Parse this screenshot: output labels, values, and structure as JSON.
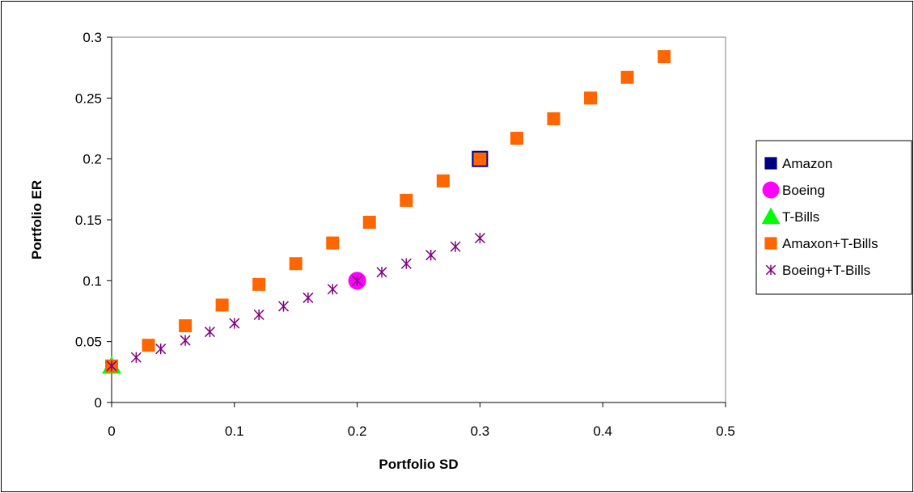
{
  "chart_data": {
    "type": "scatter",
    "xlabel": "Portfolio SD",
    "ylabel": "Portfolio ER",
    "xlim": [
      0,
      0.5
    ],
    "ylim": [
      0,
      0.3
    ],
    "xticks": [
      "0",
      "0.1",
      "0.2",
      "0.3",
      "0.4",
      "0.5"
    ],
    "yticks": [
      "0",
      "0.05",
      "0.1",
      "0.15",
      "0.2",
      "0.25",
      "0.3"
    ],
    "grid": false,
    "legend_position": "right",
    "series": [
      {
        "name": "Amazon",
        "marker": "square-large",
        "color": "#000080",
        "points": [
          [
            0.3,
            0.2
          ]
        ]
      },
      {
        "name": "Boeing",
        "marker": "circle",
        "color": "#FF00FF",
        "points": [
          [
            0.2,
            0.1
          ]
        ]
      },
      {
        "name": "T-Bills",
        "marker": "triangle",
        "color": "#00FF00",
        "points": [
          [
            0,
            0.03
          ]
        ]
      },
      {
        "name": "Amaxon+T-Bills",
        "marker": "square",
        "color": "#FF6600",
        "points": [
          [
            0,
            0.03
          ],
          [
            0.03,
            0.047
          ],
          [
            0.06,
            0.063
          ],
          [
            0.09,
            0.08
          ],
          [
            0.12,
            0.097
          ],
          [
            0.15,
            0.114
          ],
          [
            0.18,
            0.131
          ],
          [
            0.21,
            0.148
          ],
          [
            0.24,
            0.166
          ],
          [
            0.27,
            0.182
          ],
          [
            0.3,
            0.2
          ],
          [
            0.33,
            0.217
          ],
          [
            0.36,
            0.233
          ],
          [
            0.39,
            0.25
          ],
          [
            0.42,
            0.267
          ],
          [
            0.45,
            0.284
          ]
        ]
      },
      {
        "name": "Boeing+T-Bills",
        "marker": "asterisk",
        "color": "#800080",
        "points": [
          [
            0,
            0.03
          ],
          [
            0.02,
            0.037
          ],
          [
            0.04,
            0.044
          ],
          [
            0.06,
            0.051
          ],
          [
            0.08,
            0.058
          ],
          [
            0.1,
            0.065
          ],
          [
            0.12,
            0.072
          ],
          [
            0.14,
            0.079
          ],
          [
            0.16,
            0.086
          ],
          [
            0.18,
            0.093
          ],
          [
            0.2,
            0.1
          ],
          [
            0.22,
            0.107
          ],
          [
            0.24,
            0.114
          ],
          [
            0.26,
            0.121
          ],
          [
            0.28,
            0.128
          ],
          [
            0.3,
            0.135
          ]
        ]
      }
    ]
  }
}
